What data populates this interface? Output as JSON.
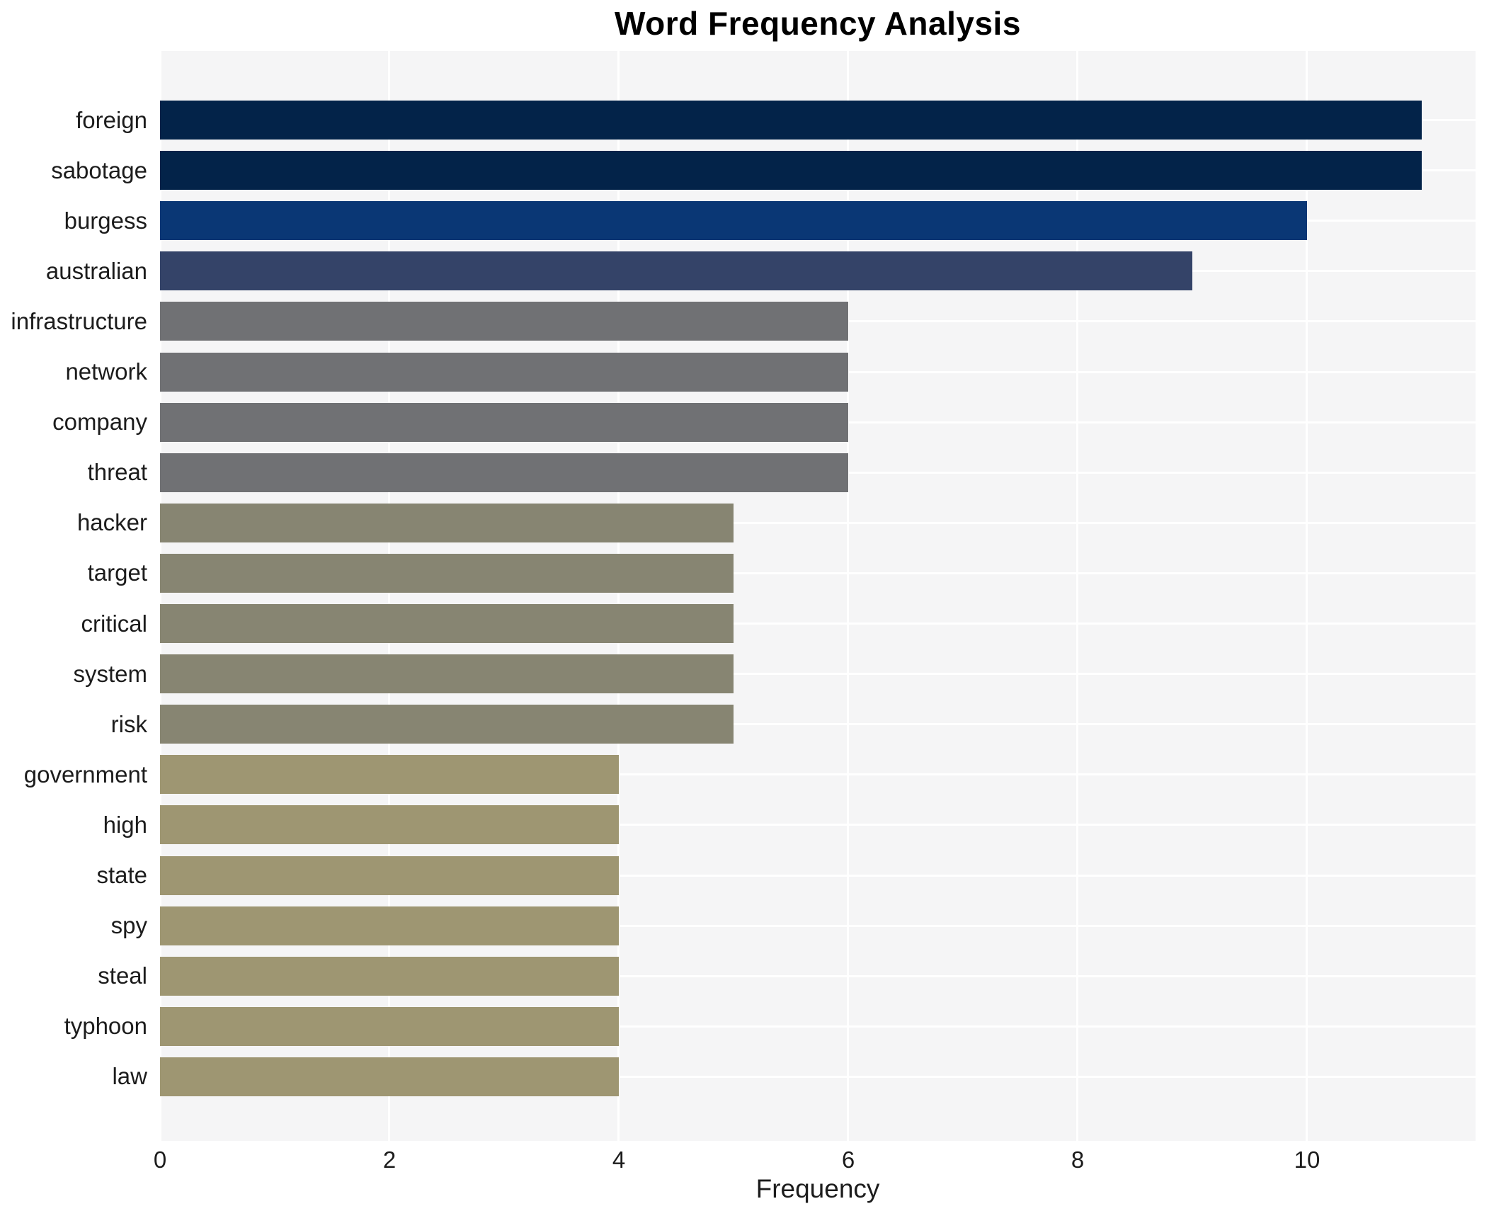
{
  "title": "Word Frequency Analysis",
  "chart_data": {
    "type": "bar",
    "orientation": "horizontal",
    "title": "Word Frequency Analysis",
    "xlabel": "Frequency",
    "ylabel": "",
    "categories": [
      "foreign",
      "sabotage",
      "burgess",
      "australian",
      "infrastructure",
      "network",
      "company",
      "threat",
      "hacker",
      "target",
      "critical",
      "system",
      "risk",
      "government",
      "high",
      "state",
      "spy",
      "steal",
      "typhoon",
      "law"
    ],
    "values": [
      11,
      11,
      10,
      9,
      6,
      6,
      6,
      6,
      5,
      5,
      5,
      5,
      5,
      4,
      4,
      4,
      4,
      4,
      4,
      4
    ],
    "bar_colors": [
      "#032349",
      "#032349",
      "#0a3775",
      "#344368",
      "#707174",
      "#707174",
      "#707174",
      "#707174",
      "#878572",
      "#878572",
      "#878572",
      "#878572",
      "#878572",
      "#9e9672",
      "#9e9672",
      "#9e9672",
      "#9e9672",
      "#9e9672",
      "#9e9672",
      "#9e9672"
    ],
    "xticks": [
      0,
      2,
      4,
      6,
      8,
      10
    ],
    "xlim": [
      0,
      11.47
    ],
    "grid": true,
    "legend": false,
    "panel_color": "#f5f5f6",
    "grid_color": "#ffffff",
    "text_color": "#1c1c1c",
    "title_color": "#000000"
  }
}
